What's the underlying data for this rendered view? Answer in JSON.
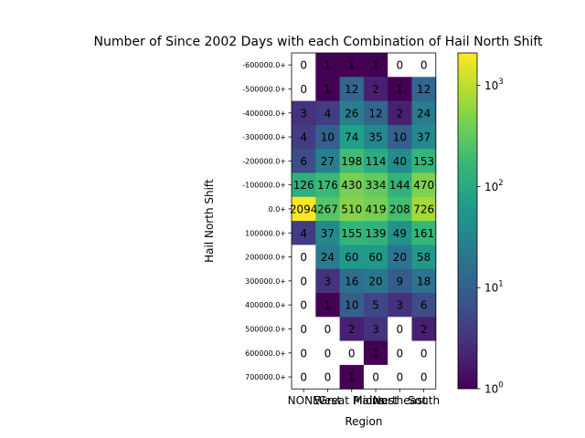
{
  "chart_data": {
    "type": "heatmap",
    "title": "Number of Since 2002 Days with each Combination of Hail North Shift",
    "xlabel": "Region",
    "ylabel": "Hail North Shift",
    "x_categories": [
      "NONE",
      "West",
      "Great Plains",
      "Midwest",
      "Northeast",
      "South"
    ],
    "y_categories": [
      "-600000.0+",
      "-500000.0+",
      "-400000.0+",
      "-300000.0+",
      "-200000.0+",
      "-100000.0+",
      "0.0+",
      "100000.0+",
      "200000.0+",
      "300000.0+",
      "400000.0+",
      "500000.0+",
      "600000.0+",
      "700000.0+"
    ],
    "values": [
      [
        0,
        1,
        1,
        1,
        0,
        0
      ],
      [
        0,
        1,
        12,
        2,
        1,
        12
      ],
      [
        3,
        4,
        26,
        12,
        2,
        24
      ],
      [
        4,
        10,
        74,
        35,
        10,
        37
      ],
      [
        6,
        27,
        198,
        114,
        40,
        153
      ],
      [
        126,
        176,
        430,
        334,
        144,
        470
      ],
      [
        2094,
        267,
        510,
        419,
        208,
        726
      ],
      [
        4,
        37,
        155,
        139,
        49,
        161
      ],
      [
        0,
        24,
        60,
        60,
        20,
        58
      ],
      [
        0,
        3,
        16,
        20,
        9,
        18
      ],
      [
        0,
        1,
        10,
        5,
        3,
        6
      ],
      [
        0,
        0,
        2,
        3,
        0,
        2
      ],
      [
        0,
        0,
        0,
        1,
        0,
        0
      ],
      [
        0,
        0,
        1,
        0,
        0,
        0
      ]
    ],
    "color_scale": "log",
    "colormap": "viridis",
    "zero_color": "#ffffff",
    "colorbar": {
      "range": [
        1,
        2094
      ],
      "ticks": [
        {
          "value": 1,
          "base": "10",
          "exp": "0"
        },
        {
          "value": 10,
          "base": "10",
          "exp": "1"
        },
        {
          "value": 100,
          "base": "10",
          "exp": "2"
        },
        {
          "value": 1000,
          "base": "10",
          "exp": "3"
        }
      ]
    }
  }
}
